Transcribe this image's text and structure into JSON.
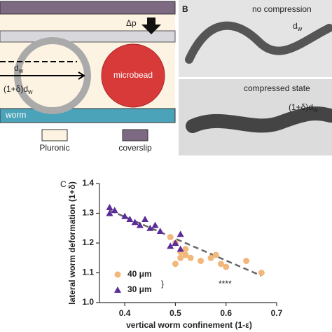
{
  "diagram": {
    "pressure": "Δp",
    "dw_main": "d",
    "dw_sub": "w",
    "dw2_main": "(1+δ)d",
    "dw2_sub": "w",
    "bead": "microbead",
    "worm": "worm",
    "legend": [
      "Pluronic",
      "coverslip"
    ]
  },
  "micrographs": {
    "panel": "B",
    "top": "no compression",
    "top_main": "d",
    "top_sub": "w",
    "bottom": "compressed state",
    "bottom_main": "(1+δ)d",
    "bottom_sub": "w"
  },
  "chart_data": {
    "type": "scatter",
    "panel": "C",
    "x_label": "vertical worm confinement (1-ε)",
    "y_label": "lateral worm deformation (1+δ)",
    "xlim": [
      0.35,
      0.7
    ],
    "xticks": [
      0.4,
      0.5,
      0.6,
      0.7
    ],
    "ylim": [
      1.0,
      1.4
    ],
    "yticks": [
      {
        "value": 1.0,
        "label": "1.0"
      },
      1.1,
      1.2,
      1.3,
      1.4
    ],
    "series": [
      {
        "name": "40 μm",
        "color": "#f2b77a",
        "marker": "circle",
        "x": [
          0.49,
          0.5,
          0.51,
          0.52,
          0.52,
          0.51,
          0.53,
          0.55,
          0.57,
          0.58,
          0.59,
          0.6,
          0.64,
          0.67,
          0.5
        ],
        "values": [
          1.22,
          1.2,
          1.17,
          1.18,
          1.16,
          1.15,
          1.15,
          1.14,
          1.15,
          1.16,
          1.13,
          1.12,
          1.14,
          1.1,
          1.13
        ]
      },
      {
        "name": "30 μm",
        "color": "#5b2d9a",
        "marker": "triangle",
        "x": [
          0.37,
          0.37,
          0.38,
          0.4,
          0.42,
          0.43,
          0.44,
          0.45,
          0.46,
          0.47,
          0.51,
          0.5,
          0.51,
          0.49,
          0.41
        ],
        "values": [
          1.32,
          1.3,
          1.31,
          1.29,
          1.27,
          1.26,
          1.28,
          1.25,
          1.26,
          1.24,
          1.23,
          1.2,
          1.18,
          1.19,
          1.28
        ]
      }
    ],
    "fit": {
      "x": [
        0.37,
        0.67
      ],
      "values": [
        1.31,
        1.09
      ]
    },
    "significance": "****"
  }
}
